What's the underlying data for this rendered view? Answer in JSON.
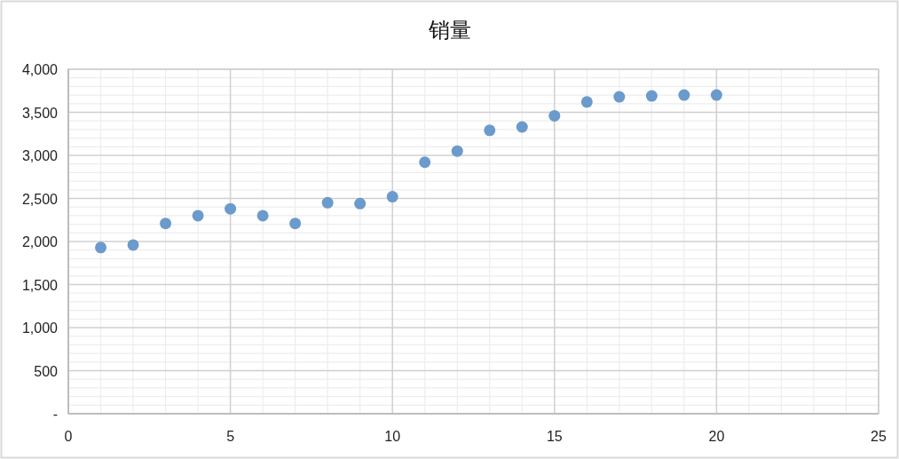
{
  "chart_data": {
    "type": "scatter",
    "title": "销量",
    "x": [
      1,
      2,
      3,
      4,
      5,
      6,
      7,
      8,
      9,
      10,
      11,
      12,
      13,
      14,
      15,
      16,
      17,
      18,
      19,
      20
    ],
    "values": [
      1930,
      1960,
      2210,
      2300,
      2380,
      2300,
      2210,
      2450,
      2440,
      2520,
      2920,
      3050,
      3290,
      3330,
      3460,
      3620,
      3680,
      3690,
      3700,
      3700
    ],
    "color": "#6b9acc",
    "marker": "circle",
    "xlim": [
      0,
      25
    ],
    "ylim": [
      0,
      4000
    ],
    "xticks": [
      0,
      {
        "value": 1,
        "label": null
      },
      {
        "value": 2,
        "label": null
      },
      {
        "value": 3,
        "label": null
      },
      {
        "value": 4,
        "label": null
      },
      5,
      {
        "value": 6,
        "label": null
      },
      {
        "value": 7,
        "label": null
      },
      {
        "value": 8,
        "label": null
      },
      {
        "value": 9,
        "label": null
      },
      10,
      {
        "value": 11,
        "label": null
      },
      {
        "value": 12,
        "label": null
      },
      {
        "value": 13,
        "label": null
      },
      {
        "value": 14,
        "label": null
      },
      15,
      {
        "value": 16,
        "label": null
      },
      {
        "value": 17,
        "label": null
      },
      {
        "value": 18,
        "label": null
      },
      {
        "value": 19,
        "label": null
      },
      20,
      {
        "value": 21,
        "label": null
      },
      {
        "value": 22,
        "label": null
      },
      {
        "value": 23,
        "label": null
      },
      {
        "value": 24,
        "label": null
      },
      25
    ],
    "yticks": [
      {
        "value": 0,
        "label": "-"
      },
      {
        "value": 100,
        "label": null
      },
      {
        "value": 200,
        "label": null
      },
      {
        "value": 300,
        "label": null
      },
      {
        "value": 400,
        "label": null
      },
      500,
      {
        "value": 600,
        "label": null
      },
      {
        "value": 700,
        "label": null
      },
      {
        "value": 800,
        "label": null
      },
      {
        "value": 900,
        "label": null
      },
      {
        "value": 1000,
        "label": "1,000"
      },
      {
        "value": 1100,
        "label": null
      },
      {
        "value": 1200,
        "label": null
      },
      {
        "value": 1300,
        "label": null
      },
      {
        "value": 1400,
        "label": null
      },
      {
        "value": 1500,
        "label": "1,500"
      },
      {
        "value": 1600,
        "label": null
      },
      {
        "value": 1700,
        "label": null
      },
      {
        "value": 1800,
        "label": null
      },
      {
        "value": 1900,
        "label": null
      },
      {
        "value": 2000,
        "label": "2,000"
      },
      {
        "value": 2100,
        "label": null
      },
      {
        "value": 2200,
        "label": null
      },
      {
        "value": 2300,
        "label": null
      },
      {
        "value": 2400,
        "label": null
      },
      {
        "value": 2500,
        "label": "2,500"
      },
      {
        "value": 2600,
        "label": null
      },
      {
        "value": 2700,
        "label": null
      },
      {
        "value": 2800,
        "label": null
      },
      {
        "value": 2900,
        "label": null
      },
      {
        "value": 3000,
        "label": "3,000"
      },
      {
        "value": 3100,
        "label": null
      },
      {
        "value": 3200,
        "label": null
      },
      {
        "value": 3300,
        "label": null
      },
      {
        "value": 3400,
        "label": null
      },
      {
        "value": 3500,
        "label": "3,500"
      },
      {
        "value": 3600,
        "label": null
      },
      {
        "value": 3700,
        "label": null
      },
      {
        "value": 3800,
        "label": null
      },
      {
        "value": 3900,
        "label": null
      },
      {
        "value": 4000,
        "label": "4,000"
      }
    ],
    "grid": true
  }
}
